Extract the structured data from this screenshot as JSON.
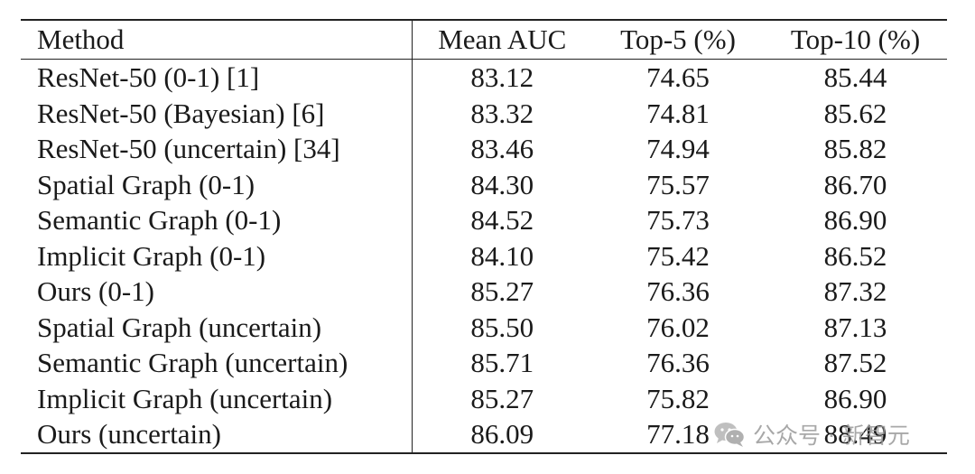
{
  "table": {
    "headers": {
      "method": "Method",
      "mean_auc": "Mean AUC",
      "top5": "Top-5 (%)",
      "top10": "Top-10 (%)"
    },
    "rows": [
      {
        "method": "ResNet-50 (0-1) [1]",
        "mean_auc": "83.12",
        "top5": "74.65",
        "top10": "85.44"
      },
      {
        "method": "ResNet-50 (Bayesian) [6]",
        "mean_auc": "83.32",
        "top5": "74.81",
        "top10": "85.62"
      },
      {
        "method": "ResNet-50 (uncertain) [34]",
        "mean_auc": "83.46",
        "top5": "74.94",
        "top10": "85.82"
      },
      {
        "method": "Spatial Graph (0-1)",
        "mean_auc": "84.30",
        "top5": "75.57",
        "top10": "86.70"
      },
      {
        "method": "Semantic Graph (0-1)",
        "mean_auc": "84.52",
        "top5": "75.73",
        "top10": "86.90"
      },
      {
        "method": "Implicit Graph (0-1)",
        "mean_auc": "84.10",
        "top5": "75.42",
        "top10": "86.52"
      },
      {
        "method": "Ours (0-1)",
        "mean_auc": "85.27",
        "top5": "76.36",
        "top10": "87.32"
      },
      {
        "method": "Spatial Graph (uncertain)",
        "mean_auc": "85.50",
        "top5": "76.02",
        "top10": "87.13"
      },
      {
        "method": "Semantic Graph (uncertain)",
        "mean_auc": "85.71",
        "top5": "76.36",
        "top10": "87.52"
      },
      {
        "method": "Implicit Graph (uncertain)",
        "mean_auc": "85.27",
        "top5": "75.82",
        "top10": "86.90"
      },
      {
        "method": "Ours (uncertain)",
        "mean_auc": "86.09",
        "top5": "77.18",
        "top10": "88.49"
      }
    ]
  },
  "watermark": {
    "text": "公众号 · 新智元",
    "icon": "wechat-icon"
  }
}
